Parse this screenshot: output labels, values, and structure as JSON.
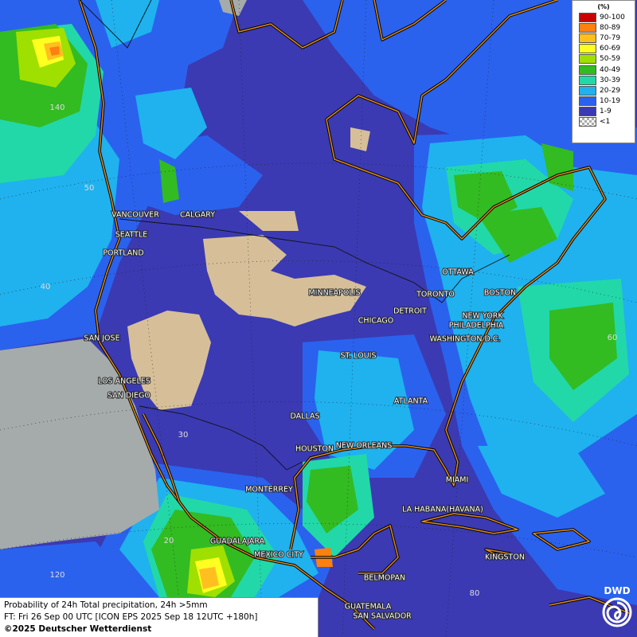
{
  "legend": {
    "title": "(%)",
    "items": [
      {
        "label": "90-100",
        "color": "#c80000"
      },
      {
        "label": "80-89",
        "color": "#ff7f0f"
      },
      {
        "label": "70-79",
        "color": "#ffbf1f"
      },
      {
        "label": "60-69",
        "color": "#ffff20"
      },
      {
        "label": "50-59",
        "color": "#9fe000"
      },
      {
        "label": "40-49",
        "color": "#33bb22"
      },
      {
        "label": "30-39",
        "color": "#22d8a8"
      },
      {
        "label": "20-29",
        "color": "#1fb2ee"
      },
      {
        "label": "10-19",
        "color": "#2a62ee"
      },
      {
        "label": "1-9",
        "color": "#3b3ab2"
      },
      {
        "label": "<1",
        "color": "#aaaaaa"
      }
    ]
  },
  "cities": [
    "VANCOUVER",
    "CALGARY",
    "SEATTLE",
    "PORTLAND",
    "MINNEAPOLIS",
    "OTTAWA",
    "TORONTO",
    "BOSTON",
    "DETROIT",
    "NEW YORK",
    "CHICAGO",
    "PHILADELPHIA",
    "SAN JOSE",
    "WASHINGTON D.C.",
    "ST. LOUIS",
    "LOS ANGELES",
    "SAN DIEGO",
    "ATLANTA",
    "DALLAS",
    "HOUSTON",
    "NEW ORLEANS",
    "MIAMI",
    "MONTERREY",
    "LA HABANA(HAVANA)",
    "GUADALAJARA",
    "MEXICO CITY",
    "KINGSTON",
    "BELMOPAN",
    "GUATEMALA",
    "SAN SALVADOR"
  ],
  "grid_labels": [
    "140",
    "50",
    "40",
    "60",
    "30",
    "20",
    "120",
    "80"
  ],
  "footer": {
    "line1": "Probability of 24h Total precipitation, 24h >5mm",
    "line2": "FT: Fri 26 Sep 00 UTC [ICON EPS 2025 Sep 18 12UTC +180h]",
    "line3": "©2025 Deutscher Wetterdienst"
  },
  "logo": "DWD"
}
